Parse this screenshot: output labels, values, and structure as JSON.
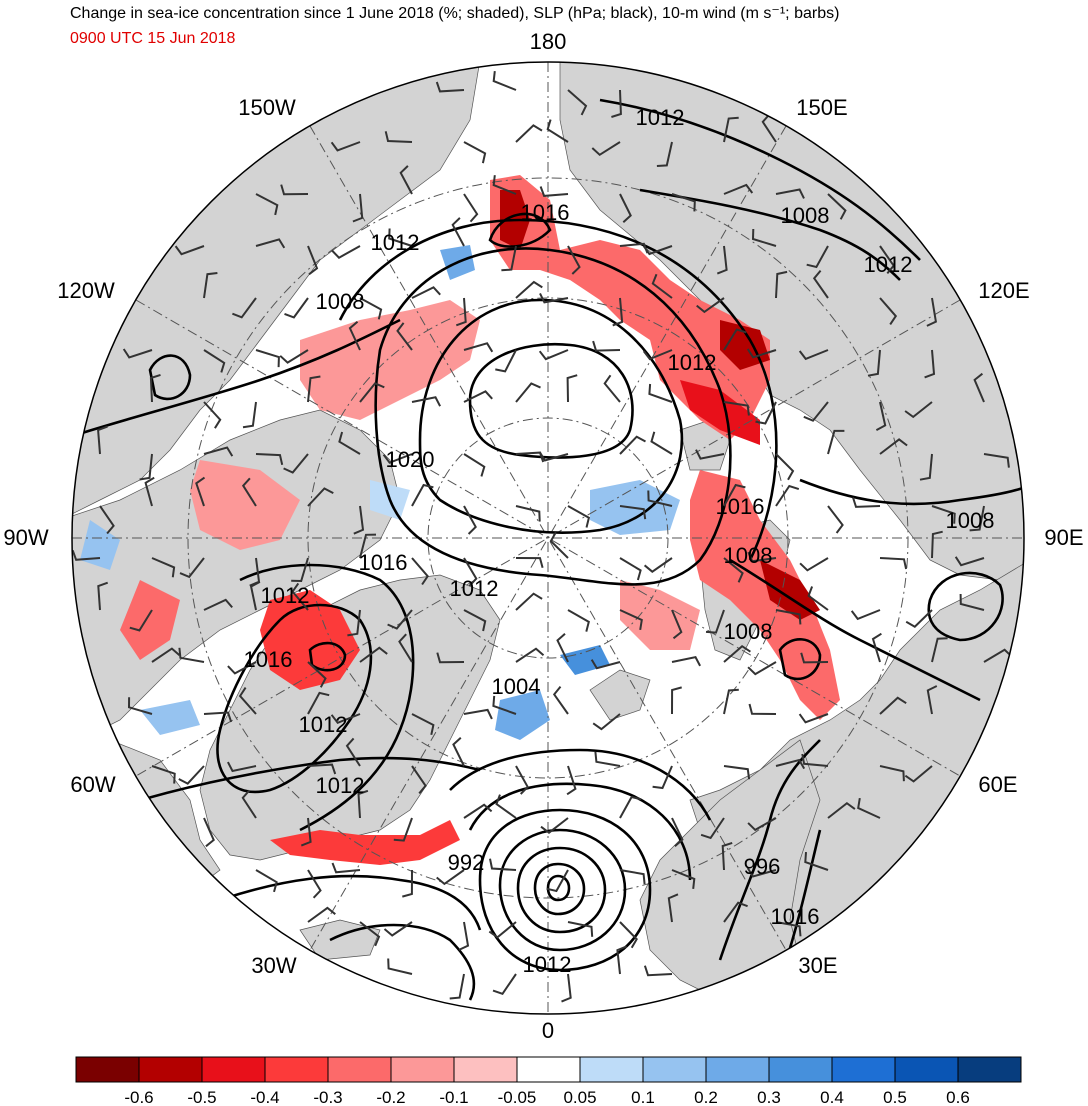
{
  "header": {
    "title": "Change in sea-ice concentration since 1 June 2018 (%; shaded), SLP (hPa; black), 10-m wind (m s⁻¹; barbs)",
    "valid_time": "0900 UTC 15 Jun 2018",
    "valid_time_color": "#e00000"
  },
  "map": {
    "projection": "north-polar-stereographic",
    "land_color": "#d3d3d3",
    "ocean_color": "#ffffff",
    "graticule_style": "dash-dot",
    "longitude_labels": [
      {
        "id": "0",
        "text": "0"
      },
      {
        "id": "30e",
        "text": "30E"
      },
      {
        "id": "60e",
        "text": "60E"
      },
      {
        "id": "90e",
        "text": "90E"
      },
      {
        "id": "120e",
        "text": "120E"
      },
      {
        "id": "150e",
        "text": "150E"
      },
      {
        "id": "180",
        "text": "180"
      },
      {
        "id": "150w",
        "text": "150W"
      },
      {
        "id": "120w",
        "text": "120W"
      },
      {
        "id": "90w",
        "text": "90W"
      },
      {
        "id": "60w",
        "text": "60W"
      },
      {
        "id": "30w",
        "text": "30W"
      }
    ],
    "slp_contour_labels": [
      "1012",
      "1008",
      "1016",
      "1012",
      "1008",
      "1012",
      "1020",
      "1008",
      "1016",
      "1016",
      "1012",
      "1008",
      "1008",
      "1012",
      "1016",
      "1012",
      "1008",
      "1004",
      "1012",
      "996",
      "992",
      "1012",
      "1016"
    ]
  },
  "colorbar": {
    "bins": [
      {
        "color": "#7a0000"
      },
      {
        "color": "#b30000"
      },
      {
        "color": "#e8101a"
      },
      {
        "color": "#fc3a3a"
      },
      {
        "color": "#fc6a6a"
      },
      {
        "color": "#fc9898"
      },
      {
        "color": "#fdc0c0"
      },
      {
        "color": "#ffffff"
      },
      {
        "color": "#bedcf8"
      },
      {
        "color": "#96c3f0"
      },
      {
        "color": "#6eaae8"
      },
      {
        "color": "#4690dc"
      },
      {
        "color": "#1e6fd4"
      },
      {
        "color": "#0a55b4"
      },
      {
        "color": "#073d7e"
      }
    ],
    "tick_labels": [
      "-0.6",
      "-0.5",
      "-0.4",
      "-0.3",
      "-0.2",
      "-0.1",
      "-0.05",
      "0.05",
      "0.1",
      "0.2",
      "0.3",
      "0.4",
      "0.5",
      "0.6"
    ]
  }
}
